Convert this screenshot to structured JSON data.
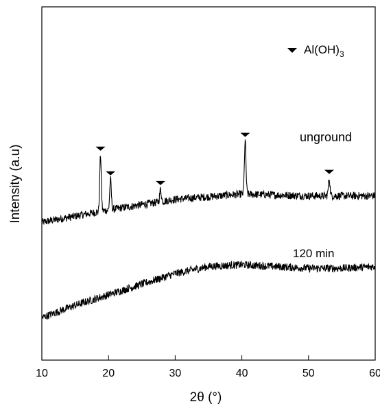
{
  "chart_data": {
    "type": "line",
    "xlabel": "2θ (°)",
    "ylabel": "Intensity (a.u)",
    "xlim": [
      10,
      60
    ],
    "x_ticks": [
      10,
      20,
      30,
      40,
      50,
      60
    ],
    "y_ticks": "none",
    "grid": false,
    "legend": {
      "position": "top-right",
      "marker": "down-triangle",
      "label": "Al(OH)",
      "label_subscript": "3"
    },
    "series": [
      {
        "name": "unground",
        "color": "#000000",
        "baseline_points": [
          [
            10,
            0.39
          ],
          [
            20,
            0.425
          ],
          [
            30,
            0.455
          ],
          [
            40,
            0.47
          ],
          [
            50,
            0.465
          ],
          [
            60,
            0.465
          ]
        ],
        "peaks": [
          {
            "x": 18.8,
            "height": 0.16
          },
          {
            "x": 20.3,
            "height": 0.085
          },
          {
            "x": 27.8,
            "height": 0.035
          },
          {
            "x": 40.5,
            "height": 0.15
          },
          {
            "x": 53.1,
            "height": 0.05
          }
        ],
        "marker_positions": [
          18.8,
          20.3,
          27.8,
          40.5,
          53.1
        ]
      },
      {
        "name": "120 min",
        "color": "#000000",
        "baseline_points": [
          [
            10,
            0.12
          ],
          [
            15,
            0.155
          ],
          [
            20,
            0.185
          ],
          [
            25,
            0.215
          ],
          [
            30,
            0.245
          ],
          [
            35,
            0.265
          ],
          [
            40,
            0.27
          ],
          [
            45,
            0.265
          ],
          [
            50,
            0.26
          ],
          [
            55,
            0.26
          ],
          [
            60,
            0.265
          ]
        ],
        "peaks": []
      }
    ],
    "annotation_marker_x": [
      18.8,
      20.3,
      27.8,
      40.5,
      53.1
    ]
  }
}
